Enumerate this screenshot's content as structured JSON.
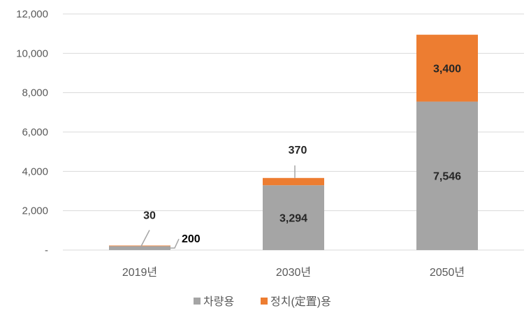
{
  "chart_data": {
    "type": "bar",
    "stacked": true,
    "categories": [
      "2019년",
      "2030년",
      "2050년"
    ],
    "series": [
      {
        "name": "차량용",
        "values": [
          200,
          3294,
          7546
        ],
        "value_labels": [
          "200",
          "3,294",
          "7,546"
        ],
        "color": "#a5a5a5"
      },
      {
        "name": "정치(定置)용",
        "values": [
          30,
          370,
          3400
        ],
        "value_labels": [
          "30",
          "370",
          "3,400"
        ],
        "color": "#ed7d31"
      }
    ],
    "y_ticks": [
      0,
      2000,
      4000,
      6000,
      8000,
      10000,
      12000
    ],
    "y_tick_labels": [
      "-",
      "2,000",
      "4,000",
      "6,000",
      "8,000",
      "10,000",
      "12,000"
    ],
    "ylim": [
      0,
      12000
    ],
    "grid": true,
    "legend": "bottom",
    "gridline_color": "#d9d9d9"
  }
}
